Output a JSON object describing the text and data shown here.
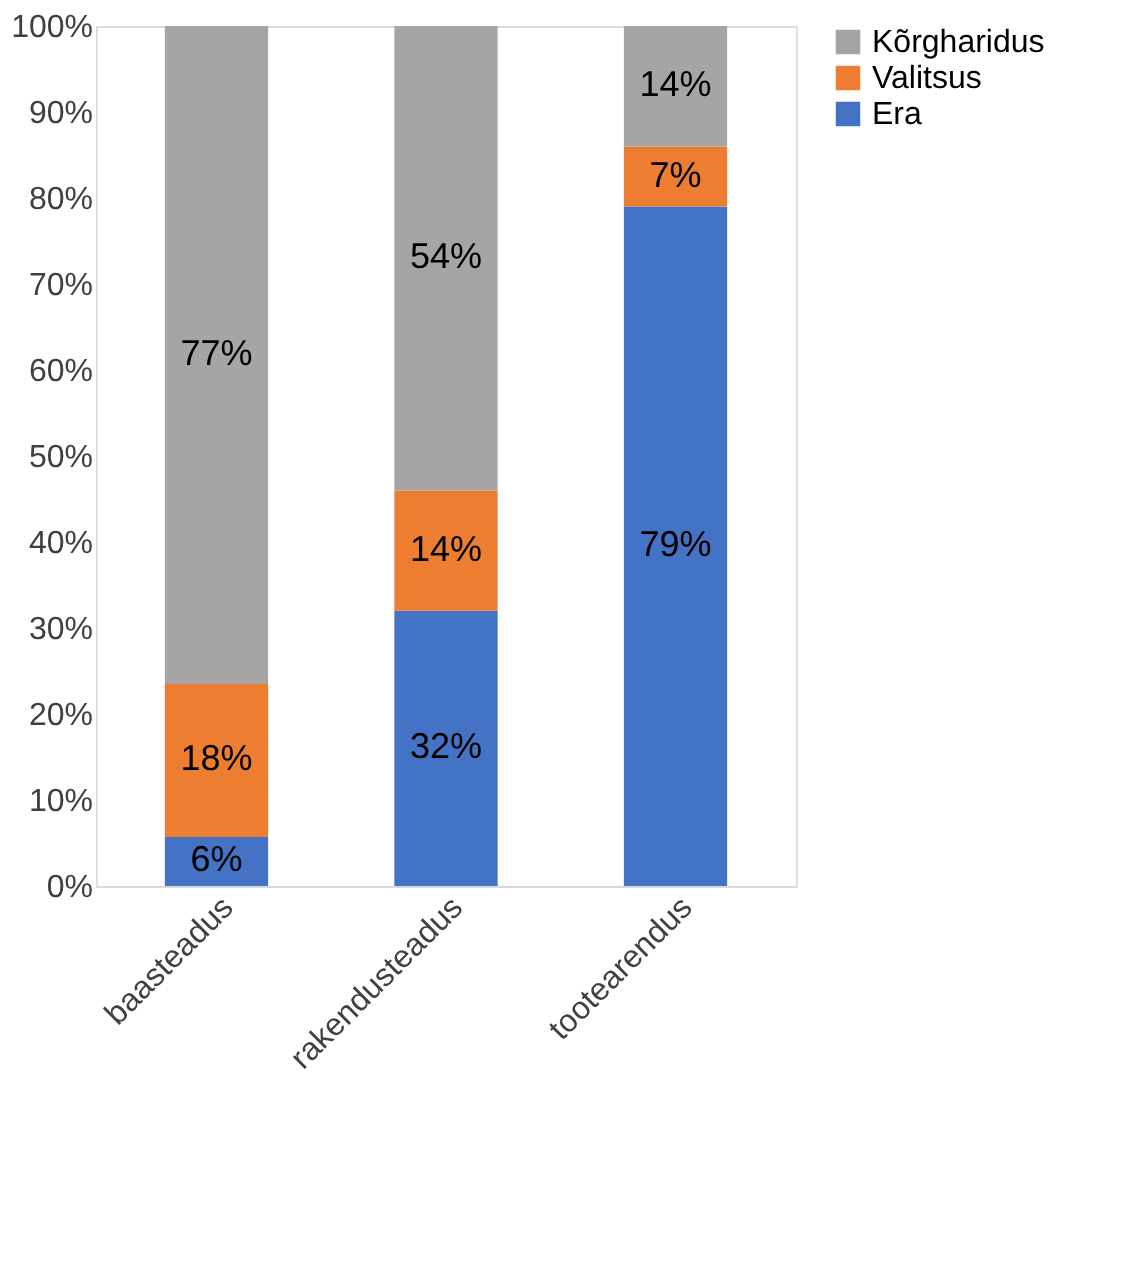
{
  "chart_data": {
    "type": "bar",
    "stacked": true,
    "categories": [
      "baasteadus",
      "rakendusteadus",
      "tootearendus"
    ],
    "series": [
      {
        "name": "Era",
        "color": "#4472c4",
        "values": [
          5.7,
          32,
          79
        ],
        "value_labels": [
          "6%",
          "32%",
          "79%"
        ]
      },
      {
        "name": "Valitsus",
        "color": "#ed7d31",
        "values": [
          17.8,
          14,
          7
        ],
        "value_labels": [
          "18%",
          "14%",
          "7%"
        ]
      },
      {
        "name": "Kõrgharidus",
        "color": "#a5a5a5",
        "values": [
          76.5,
          54,
          14
        ],
        "value_labels": [
          "77%",
          "54%",
          "14%"
        ]
      }
    ],
    "ylim": [
      0,
      100
    ],
    "yticks": [
      {
        "value": 0,
        "label": "0%"
      },
      {
        "value": 10,
        "label": "10%"
      },
      {
        "value": 20,
        "label": "20%"
      },
      {
        "value": 30,
        "label": "30%"
      },
      {
        "value": 40,
        "label": "40%"
      },
      {
        "value": 50,
        "label": "50%"
      },
      {
        "value": 60,
        "label": "60%"
      },
      {
        "value": 70,
        "label": "70%"
      },
      {
        "value": 80,
        "label": "80%"
      },
      {
        "value": 90,
        "label": "90%"
      },
      {
        "value": 100,
        "label": "100%"
      }
    ],
    "grid": false,
    "legend": "right"
  }
}
